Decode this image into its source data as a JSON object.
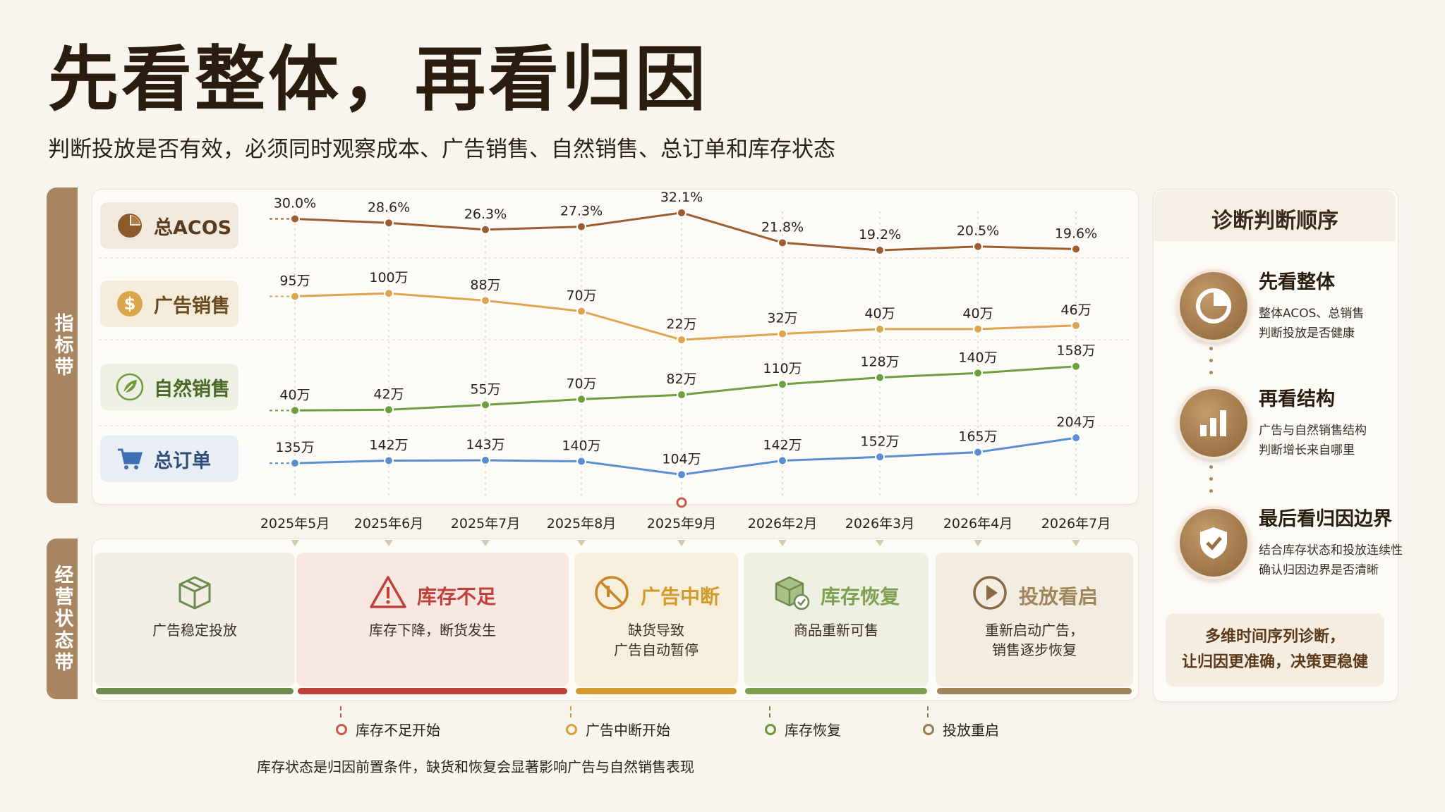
{
  "title": "先看整体，再看归因",
  "subtitle": "判断投放是否有效，必须同时观察成本、广告销售、自然销售、总订单和库存状态",
  "bands": {
    "metrics": "指标带",
    "ops": "经营状态带"
  },
  "metric_labels": [
    {
      "text": "总ACOS",
      "icon": "pie-icon",
      "color": "#8b5a2b"
    },
    {
      "text": "广告销售",
      "icon": "dollar-icon",
      "color": "#d9a64a"
    },
    {
      "text": "自然销售",
      "icon": "leaf-icon",
      "color": "#6e9a3c"
    },
    {
      "text": "总订单",
      "icon": "cart-icon",
      "color": "#4a7fc1"
    }
  ],
  "chart_data": {
    "type": "line",
    "categories": [
      "2025年5月",
      "2025年6月",
      "2025年7月",
      "2025年8月",
      "2025年9月",
      "2026年2月",
      "2026年3月",
      "2026年4月",
      "2026年7月"
    ],
    "series": [
      {
        "name": "总ACOS",
        "color": "#9c5e2e",
        "values": [
          30.0,
          28.6,
          26.3,
          27.3,
          32.1,
          21.8,
          19.2,
          20.5,
          19.6
        ],
        "labels": [
          "30.0%",
          "28.6%",
          "26.3%",
          "27.3%",
          "32.1%",
          "21.8%",
          "19.2%",
          "20.5%",
          "19.6%"
        ]
      },
      {
        "name": "广告销售",
        "color": "#dca650",
        "values": [
          95,
          100,
          88,
          70,
          22,
          32,
          40,
          40,
          46
        ],
        "labels": [
          "95万",
          "100万",
          "88万",
          "70万",
          "22万",
          "32万",
          "40万",
          "40万",
          "46万"
        ]
      },
      {
        "name": "自然销售",
        "color": "#6e9f3e",
        "values": [
          40,
          42,
          55,
          70,
          82,
          110,
          128,
          140,
          158
        ],
        "labels": [
          "40万",
          "42万",
          "55万",
          "70万",
          "82万",
          "110万",
          "128万",
          "140万",
          "158万"
        ]
      },
      {
        "name": "总订单",
        "color": "#5b8ed0",
        "values": [
          135,
          142,
          143,
          140,
          104,
          142,
          152,
          165,
          204
        ],
        "labels": [
          "135万",
          "142万",
          "143万",
          "140万",
          "104万",
          "142万",
          "152万",
          "165万",
          "204万"
        ]
      }
    ],
    "highlight_category": "2025年9月"
  },
  "states": [
    {
      "title": "",
      "icon": "box-icon",
      "desc": "广告稳定投放",
      "color": "#6f8a4e",
      "bg": "#f1efe4"
    },
    {
      "title": "库存不足",
      "icon": "warning-icon",
      "desc": "库存下降，断货发生",
      "color": "#c0413b",
      "bg": "#f8e6e1"
    },
    {
      "title": "广告中断",
      "icon": "pause-icon",
      "desc": "缺货导致\n广告自动暂停",
      "color": "#d19a2c",
      "bg": "#f7eedb"
    },
    {
      "title": "库存恢复",
      "icon": "box-check-icon",
      "desc": "商品重新可售",
      "color": "#7f9f52",
      "bg": "#eef0e1"
    },
    {
      "title": "投放看启",
      "icon": "play-icon",
      "desc": "重新启动广告，\n销售逐步恢复",
      "color": "#a2845c",
      "bg": "#f2ece1"
    }
  ],
  "events": [
    {
      "text": "库存不足开始",
      "color": "#c85b48"
    },
    {
      "text": "广告中断开始",
      "color": "#d9a039"
    },
    {
      "text": "库存恢复",
      "color": "#6f963e"
    },
    {
      "text": "投放重启",
      "color": "#9a7c57"
    }
  ],
  "note": "库存状态是归因前置条件，缺货和恢复会显著影响广告与自然销售表现",
  "right_panel": {
    "title": "诊断判断顺序",
    "steps": [
      {
        "title": "先看整体",
        "desc1": "整体ACOS、总销售",
        "desc2": "判断投放是否健康",
        "icon": "pie-icon"
      },
      {
        "title": "再看结构",
        "desc1": "广告与自然销售结构",
        "desc2": "判断增长来自哪里",
        "icon": "bar-chart-icon"
      },
      {
        "title": "最后看归因边界",
        "desc1": "结合库存状态和投放连续性",
        "desc2": "确认归因边界是否清晰",
        "icon": "shield-check-icon"
      }
    ],
    "summary1": "多维时间序列诊断，",
    "summary2": "让归因更准确，决策更稳健"
  }
}
